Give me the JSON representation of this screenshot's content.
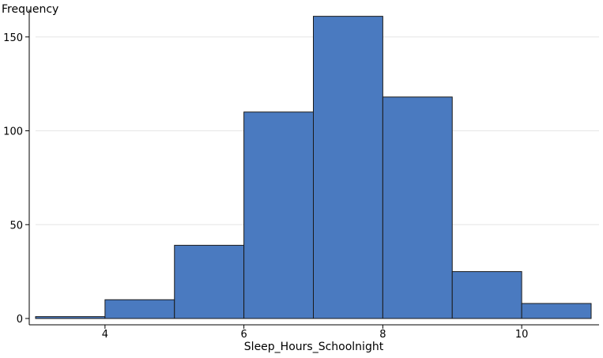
{
  "chart_data": {
    "type": "bar",
    "subtype": "histogram",
    "title": "",
    "xlabel": "Sleep_Hours_Schoolnight",
    "ylabel": "Frequency",
    "xlim": [
      3,
      11
    ],
    "ylim": [
      0,
      160
    ],
    "x_ticks": [
      4,
      6,
      8,
      10
    ],
    "y_ticks": [
      0,
      50,
      100,
      150
    ],
    "bins": [
      {
        "start": 3,
        "end": 4,
        "value": 1
      },
      {
        "start": 4,
        "end": 5,
        "value": 10
      },
      {
        "start": 5,
        "end": 6,
        "value": 39
      },
      {
        "start": 6,
        "end": 7,
        "value": 110
      },
      {
        "start": 7,
        "end": 8,
        "value": 161
      },
      {
        "start": 8,
        "end": 9,
        "value": 118
      },
      {
        "start": 9,
        "end": 10,
        "value": 25
      },
      {
        "start": 10,
        "end": 11,
        "value": 8
      }
    ],
    "grid": "horizontal",
    "legend": "none",
    "colors": {
      "bar": "#4a7ac0",
      "bar_stroke": "#1a1a1a",
      "grid": "#e6e6e6",
      "axis": "#000000"
    }
  }
}
